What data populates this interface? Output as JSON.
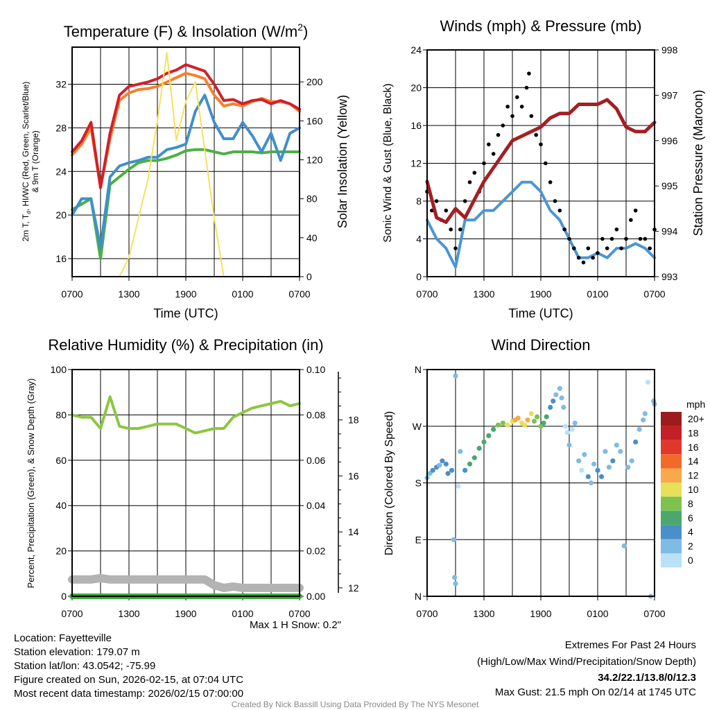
{
  "footer": {
    "location": "Location: Fayetteville",
    "elevation": "Station elevation: 179.07 m",
    "latlon": "Station lat/lon: 43.0542; -75.99",
    "created": "Figure created on Sun, 2026-02-15, at 07:04 UTC",
    "recent": "Most recent data timestamp: 2026/02/15 07:00:00",
    "max_snow": "Max 1 H Snow: 0.2\"",
    "extremes_title": "Extremes For Past 24 Hours",
    "extremes_sub": "(High/Low/Max Wind/Precipitation/Snow Depth)",
    "extremes_values": "34.2/22.1/13.8/0/12.3",
    "max_gust": "Max Gust: 21.5 mph On 02/14 at 1745 UTC",
    "credit": "Created By Nick Bassill Using Data Provided By The NYS Mesonet",
    "accent": "#cc1f26"
  },
  "chart_data": [
    {
      "id": "temp",
      "type": "line",
      "title": "Temperature (F) & Insolation (W/m",
      "title_sup": "2",
      "title_end": ")",
      "xlabel": "Time (UTC)",
      "ylabel_line1": "2m T, T",
      "ylabel_sub": "d",
      "ylabel_line1_end": ", HI/WC (Red, Green, Scarlet/Blue)",
      "ylabel_line2": "& 9m T (Orange)",
      "y2label": "Solar Insolation (Yellow)",
      "xticks": [
        "0700",
        "1300",
        "1900",
        "0100",
        "0700"
      ],
      "x_hours": [
        0,
        1,
        2,
        3,
        4,
        5,
        6,
        7,
        8,
        9,
        10,
        11,
        12,
        13,
        14,
        15,
        16,
        17,
        18,
        19,
        20,
        21,
        22,
        23,
        24
      ],
      "ylim": [
        14.35,
        35.4
      ],
      "yticks": [
        16,
        20,
        24,
        28,
        32
      ],
      "y2lim": [
        0,
        235.7
      ],
      "y2ticks": [
        0,
        40,
        80,
        120,
        160,
        200
      ],
      "series": [
        {
          "name": "9m T",
          "color": "#f6802b",
          "axis": "left",
          "values": [
            25.5,
            26.5,
            28,
            22.5,
            27,
            30.5,
            31.2,
            31.5,
            31.6,
            31.8,
            32.2,
            32.6,
            33,
            32.8,
            32.5,
            31,
            30,
            30.2,
            30,
            30.4,
            30.7,
            30.4,
            30.4,
            30.2,
            29.5
          ]
        },
        {
          "name": "2m T",
          "color": "#d2202a",
          "axis": "left",
          "values": [
            25.8,
            26.8,
            28.5,
            22.5,
            27.5,
            31,
            31.8,
            32,
            32.2,
            32.5,
            33,
            33.3,
            33.8,
            33.5,
            33.2,
            32,
            30.5,
            30.6,
            30.2,
            30.5,
            30.6,
            30.2,
            30.5,
            30.2,
            29.7
          ]
        },
        {
          "name": "Td",
          "color": "#4bb043",
          "axis": "left",
          "values": [
            20.5,
            21,
            21.5,
            16,
            22.8,
            23.5,
            24.2,
            24.8,
            25,
            25,
            25.2,
            25.5,
            25.9,
            26,
            26,
            25.8,
            25.6,
            25.8,
            25.8,
            25.8,
            25.7,
            25.8,
            25.8,
            25.8,
            25.8
          ]
        },
        {
          "name": "HI/WC",
          "color": "#3f8fcd",
          "axis": "left",
          "values": [
            20,
            21.5,
            21.5,
            17,
            23.5,
            24.5,
            24.8,
            25,
            25.3,
            25.3,
            26,
            26.2,
            26.5,
            29.5,
            31,
            28.5,
            27,
            27,
            28.5,
            27.3,
            25.8,
            27.5,
            25,
            27.5,
            28
          ]
        },
        {
          "name": "Solar Insolation",
          "color": "#f7e15a",
          "axis": "right",
          "values": [
            0,
            0,
            0,
            0,
            0,
            0,
            20,
            60,
            100,
            160,
            230,
            140,
            180,
            200,
            130,
            60,
            0,
            0,
            0,
            0,
            0,
            0,
            0,
            0,
            0
          ]
        }
      ]
    },
    {
      "id": "wind",
      "type": "line",
      "title": "Winds (mph) & Pressure (mb)",
      "xlabel": "Time (UTC)",
      "ylabel": "Sonic Wind & Gust (Blue, Black)",
      "y2label": "Station Pressure (Maroon)",
      "xticks": [
        "0700",
        "1300",
        "1900",
        "0100",
        "0700"
      ],
      "x_hours": [
        0,
        1,
        2,
        3,
        4,
        5,
        6,
        7,
        8,
        9,
        10,
        11,
        12,
        13,
        14,
        15,
        16,
        17,
        18,
        19,
        20,
        21,
        22,
        23,
        24
      ],
      "ylim": [
        0,
        24
      ],
      "yticks": [
        0,
        4,
        8,
        12,
        16,
        20,
        24
      ],
      "y2lim": [
        993,
        998
      ],
      "y2ticks": [
        993,
        994,
        995,
        996,
        997,
        998
      ],
      "series": [
        {
          "name": "Sonic Wind",
          "color": "#4a96d2",
          "axis": "left",
          "values": [
            6,
            4,
            3,
            1,
            6,
            6,
            7,
            7,
            8,
            9,
            10,
            10,
            9,
            7,
            6,
            4,
            2,
            2,
            2.5,
            2,
            3,
            3,
            3.5,
            3,
            2
          ]
        },
        {
          "name": "Station Pressure",
          "color": "#a31f23",
          "axis": "right",
          "values": [
            995.1,
            994.3,
            994.2,
            994.5,
            994.3,
            994.7,
            995.1,
            995.4,
            995.7,
            996.0,
            996.1,
            996.2,
            996.3,
            996.5,
            996.6,
            996.6,
            996.8,
            996.8,
            996.8,
            996.9,
            996.7,
            996.3,
            996.2,
            996.2,
            996.4
          ]
        }
      ],
      "gusts": {
        "color": "#000000",
        "x": [
          0,
          0.5,
          1,
          1.5,
          2,
          2.5,
          3,
          3.5,
          4,
          4.5,
          5,
          5.5,
          6,
          6.5,
          7,
          7.5,
          8,
          8.5,
          9,
          9.5,
          10,
          10.5,
          10.75,
          11,
          11.5,
          12,
          12.5,
          13,
          13.5,
          14,
          14.5,
          15,
          15.5,
          16,
          16.5,
          17,
          17.5,
          18,
          18.5,
          19,
          19.5,
          20,
          20.5,
          21,
          21.5,
          22,
          22.5,
          23,
          23.5,
          24
        ],
        "values": [
          9,
          7,
          8,
          6,
          7,
          5,
          3,
          5,
          8,
          10,
          11,
          9,
          12,
          14,
          13,
          15,
          16,
          18,
          17,
          19,
          18,
          20,
          21.5,
          17,
          15,
          14,
          12,
          10,
          8,
          7,
          5,
          4,
          3,
          2,
          1.5,
          3,
          2,
          2.5,
          4,
          3,
          4,
          5,
          3,
          4,
          6,
          7,
          4,
          4,
          3,
          5
        ]
      }
    },
    {
      "id": "rh",
      "type": "line",
      "title": "Relative Humidity (%) & Precipitation (in)",
      "ylabel": "Percent, Precipitation (Green), & Snow Depth (Gray)",
      "xticks": [
        "0700",
        "1300",
        "1900",
        "0100",
        "0700"
      ],
      "x_hours": [
        0,
        1,
        2,
        3,
        4,
        5,
        6,
        7,
        8,
        9,
        10,
        11,
        12,
        13,
        14,
        15,
        16,
        17,
        18,
        19,
        20,
        21,
        22,
        23,
        24
      ],
      "ylim": [
        0,
        100
      ],
      "yticks": [
        0,
        20,
        40,
        60,
        80,
        100
      ],
      "y2lim": [
        0,
        0.1
      ],
      "y2ticks": [
        "0.00",
        "0.02",
        "0.04",
        "0.06",
        "0.08",
        "0.10"
      ],
      "y3lim": [
        11.7,
        19.8
      ],
      "y3ticks": [
        12,
        14,
        16,
        18
      ],
      "series": [
        {
          "name": "Relative Humidity",
          "color": "#8cc63f",
          "axis": "left",
          "values": [
            80,
            79,
            79,
            74,
            88,
            75,
            74,
            74,
            75,
            76,
            76,
            76,
            74,
            72,
            73,
            74,
            74,
            79,
            81,
            83,
            84,
            85,
            86,
            84,
            85
          ]
        },
        {
          "name": "Precipitation",
          "color": "#3aaa35",
          "axis": "right",
          "values": [
            0,
            0,
            0,
            0,
            0,
            0,
            0,
            0,
            0,
            0,
            0,
            0,
            0,
            0,
            0,
            0,
            0,
            0,
            0,
            0,
            0,
            0,
            0,
            0,
            0
          ]
        },
        {
          "name": "Snow Depth",
          "color": "#b3b3b3",
          "axis": "snow",
          "values": [
            12.3,
            12.3,
            12.3,
            12.35,
            12.3,
            12.3,
            12.3,
            12.3,
            12.3,
            12.3,
            12.3,
            12.3,
            12.3,
            12.3,
            12.3,
            12.1,
            12.0,
            12.05,
            12.0,
            12.0,
            12.0,
            12.0,
            12.0,
            12.0,
            12.0
          ]
        }
      ]
    },
    {
      "id": "dir",
      "type": "scatter",
      "title": "Wind Direction",
      "ylabel": "Direction (Colored By Speed)",
      "xticks": [
        "0700",
        "1300",
        "1900",
        "0100",
        "0700"
      ],
      "ylim": [
        0,
        360
      ],
      "yticks": [
        "N",
        "E",
        "S",
        "W",
        "N"
      ],
      "legend_title": "mph",
      "legend": [
        {
          "label": "20+",
          "color": "#9b1b1e"
        },
        {
          "label": "18",
          "color": "#c41e26"
        },
        {
          "label": "16",
          "color": "#e0392b"
        },
        {
          "label": "14",
          "color": "#f26a2a"
        },
        {
          "label": "12",
          "color": "#f9a94a"
        },
        {
          "label": "10",
          "color": "#e7e05a"
        },
        {
          "label": "8",
          "color": "#7dc24e"
        },
        {
          "label": "6",
          "color": "#4aa86e"
        },
        {
          "label": "4",
          "color": "#4a8fc7"
        },
        {
          "label": "2",
          "color": "#7fbbe4"
        },
        {
          "label": "0",
          "color": "#b8e2f7"
        }
      ],
      "x": [
        0,
        0.3,
        0.6,
        1,
        1.3,
        1.6,
        2,
        2.2,
        2.6,
        2.8,
        2.9,
        3,
        3,
        3.3,
        3.5,
        4,
        4.5,
        5,
        5.5,
        6,
        6.5,
        7,
        7.5,
        8,
        8.5,
        9,
        9.3,
        9.6,
        10,
        10.3,
        10.6,
        11,
        11.3,
        11.6,
        12,
        12.3,
        12.6,
        13,
        13.3,
        13.6,
        14,
        14.2,
        14.4,
        14.6,
        14.8,
        15,
        15.3,
        15.6,
        16,
        16.3,
        16.6,
        17,
        17.3,
        17.6,
        18,
        18.4,
        18.8,
        19.2,
        19.6,
        20,
        20.4,
        20.8,
        21.2,
        21.6,
        22,
        22.4,
        22.8,
        23,
        23.3,
        23.6,
        23.9,
        24
      ],
      "dir": [
        188,
        195,
        200,
        205,
        208,
        215,
        210,
        195,
        200,
        90,
        30,
        20,
        350,
        175,
        230,
        200,
        210,
        220,
        235,
        245,
        255,
        265,
        272,
        275,
        272,
        278,
        280,
        283,
        275,
        272,
        280,
        290,
        278,
        285,
        270,
        275,
        285,
        300,
        310,
        320,
        330,
        315,
        300,
        270,
        260,
        240,
        265,
        275,
        215,
        200,
        225,
        190,
        180,
        210,
        200,
        190,
        230,
        205,
        215,
        240,
        230,
        80,
        205,
        215,
        245,
        265,
        280,
        290,
        340,
        0,
        310,
        305
      ],
      "speed": [
        3,
        3,
        4,
        4,
        3,
        4,
        4,
        4,
        4,
        2,
        2,
        3,
        3,
        1,
        3,
        4,
        6,
        6,
        6,
        6,
        7,
        7,
        8,
        9,
        10,
        11,
        13,
        12,
        11,
        10,
        12,
        10,
        9,
        8,
        8,
        7,
        6,
        5,
        4,
        3,
        2,
        2,
        2,
        1,
        1,
        2,
        1,
        2,
        2,
        1,
        3,
        4,
        3,
        2,
        4,
        4,
        3,
        3,
        4,
        2,
        3,
        2,
        3,
        2,
        4,
        2,
        3,
        2,
        1,
        3,
        2,
        2
      ]
    }
  ]
}
